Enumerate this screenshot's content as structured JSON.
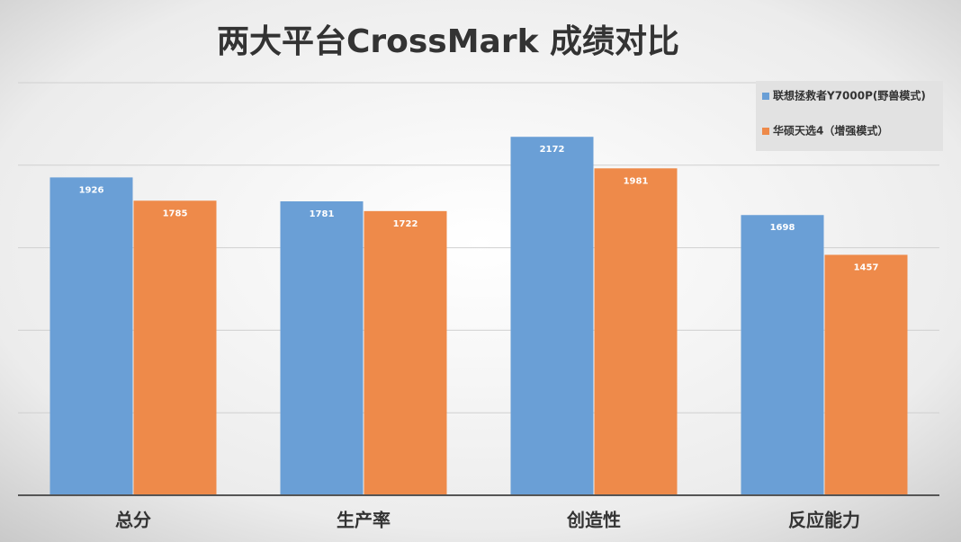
{
  "chart_data": {
    "type": "bar",
    "title": "两大平台CrossMark 成绩对比",
    "categories": [
      "总分",
      "生产率",
      "创造性",
      "反应能力"
    ],
    "series": [
      {
        "name": "联想拯救者Y7000P(野兽模式)",
        "color": "#6a9fd6",
        "values": [
          1926,
          1781,
          2172,
          1698
        ]
      },
      {
        "name": "华硕天选4（增强模式）",
        "color": "#ee8a4a",
        "values": [
          1785,
          1722,
          1981,
          1457
        ]
      }
    ],
    "ylim": [
      0,
      2500
    ],
    "yticks": [
      0,
      500,
      1000,
      1500,
      2000,
      2500
    ],
    "grid": true,
    "legend": "top-right"
  }
}
